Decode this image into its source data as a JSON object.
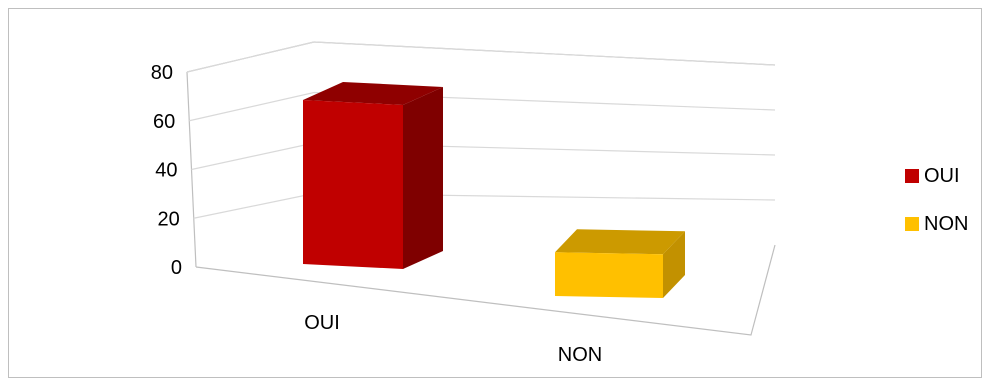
{
  "chart_data": {
    "type": "bar",
    "categories": [
      "OUI",
      "NON"
    ],
    "values": [
      75,
      20
    ],
    "yticks": [
      0,
      20,
      40,
      60,
      80
    ],
    "ylim": [
      0,
      80
    ],
    "title": "",
    "xlabel": "",
    "ylabel": "",
    "legend": {
      "position": "right",
      "entries": [
        {
          "label": "OUI",
          "color": "#c00000"
        },
        {
          "label": "NON",
          "color": "#ffc000"
        }
      ]
    },
    "grid": true,
    "three_d": true
  },
  "colors": {
    "bars": [
      {
        "front": "#c00000",
        "side": "#7f0000",
        "top": "#8f0000"
      },
      {
        "front": "#ffc000",
        "side": "#c29100",
        "top": "#cc9a00"
      }
    ],
    "gridline": "#d9d9d9",
    "frame": "#bfbfbf"
  }
}
